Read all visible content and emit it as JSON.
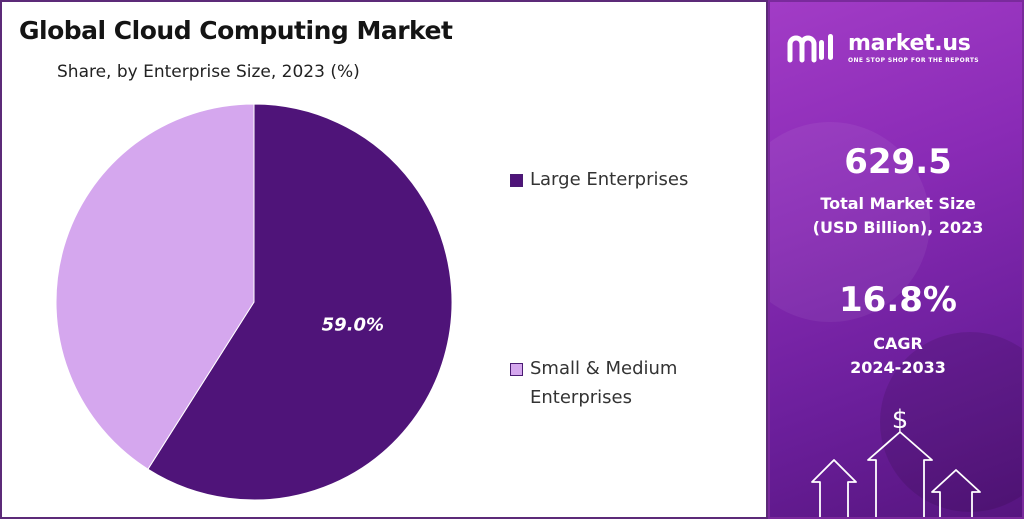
{
  "title": "Global Cloud Computing Market",
  "subtitle": "Share, by Enterprise Size, 2023 (%)",
  "colors": {
    "large_enterprises": "#4f1479",
    "small_medium_enterprises": "#d5a7ee",
    "panel_gradient_start": "#a23cc6",
    "panel_gradient_end": "#56157f"
  },
  "chart_data": {
    "type": "pie",
    "title": "Global Cloud Computing Market",
    "subtitle": "Share, by Enterprise Size, 2023 (%)",
    "slices": [
      {
        "label": "Large Enterprises",
        "value": 59.0,
        "color": "#4f1479",
        "data_label": "59.0%"
      },
      {
        "label": "Small & Medium Enterprises",
        "value": 41.0,
        "color": "#d5a7ee",
        "data_label": ""
      }
    ],
    "legend_position": "right"
  },
  "legend": {
    "large": "Large Enterprises",
    "sme": "Small & Medium Enterprises"
  },
  "brand": {
    "name": "market.us",
    "tagline": "ONE STOP SHOP FOR THE REPORTS"
  },
  "stats": {
    "market_size_value": "629.5",
    "market_size_label_line1": "Total Market Size",
    "market_size_label_line2": "(USD Billion), 2023",
    "cagr_value": "16.8%",
    "cagr_label_line1": "CAGR",
    "cagr_label_line2": "2024-2033"
  },
  "icons": {
    "logo": "market-us-logo-icon",
    "growth": "dollar-growth-arrows-icon"
  }
}
